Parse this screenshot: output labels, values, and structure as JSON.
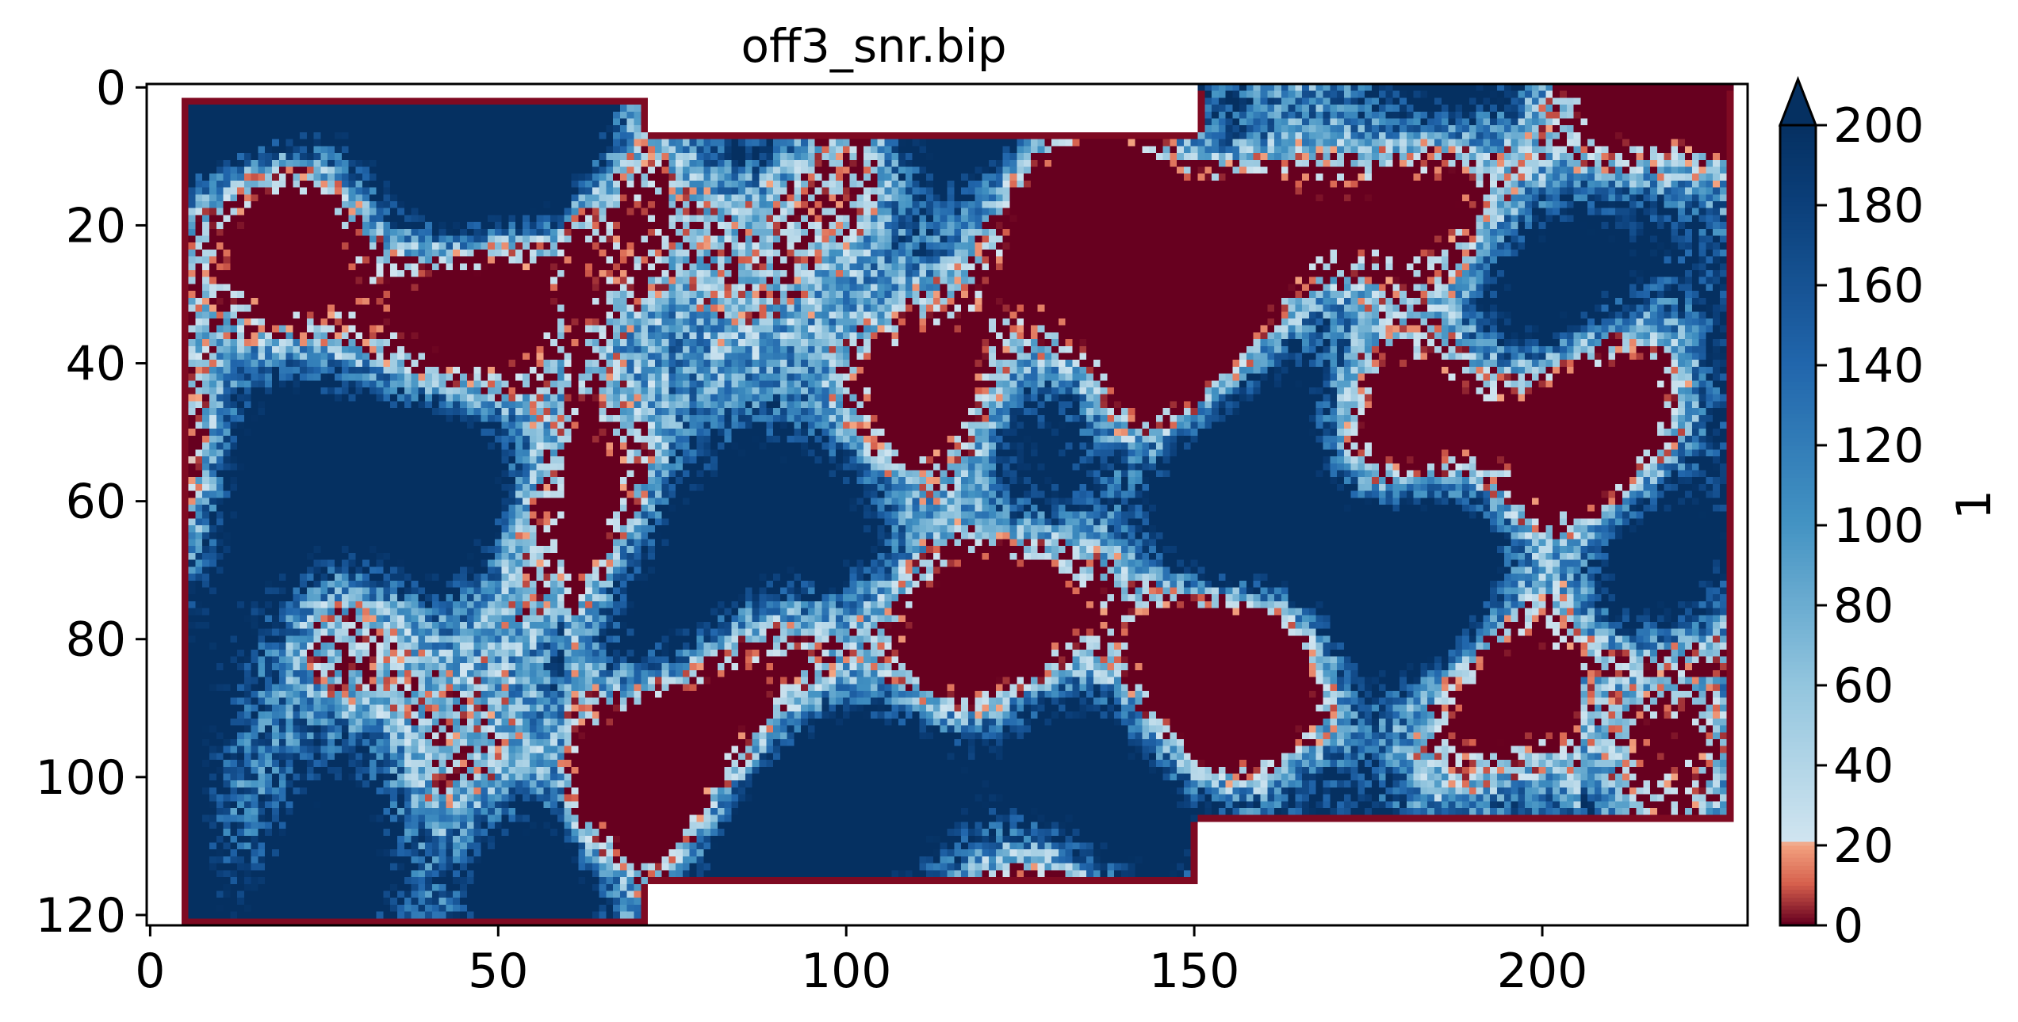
{
  "chart_data": {
    "type": "heatmap",
    "title": "off3_snr.bip",
    "x_ticks": [
      0,
      50,
      100,
      150,
      200
    ],
    "y_ticks": [
      0,
      20,
      40,
      60,
      80,
      100,
      120
    ],
    "xlim": [
      -0.5,
      229.5
    ],
    "ylim": [
      121.5,
      -0.5
    ],
    "grid_shape": {
      "rows": 122,
      "cols": 230
    },
    "valid_region": [
      {
        "x_from": 5,
        "x_to": 72,
        "y_from": 2,
        "y_to": 122
      },
      {
        "x_from": 72,
        "x_to": 151,
        "y_from": 7,
        "y_to": 116
      },
      {
        "x_from": 151,
        "x_to": 228,
        "y_from": 0,
        "y_to": 107
      }
    ],
    "colorbar": {
      "label": "1",
      "range": [
        0,
        200
      ],
      "ticks": [
        0,
        20,
        40,
        60,
        80,
        100,
        120,
        140,
        160,
        180,
        200
      ],
      "extend": "max",
      "stops": [
        {
          "value": 0,
          "color": "#67001f"
        },
        {
          "value": 10,
          "color": "#d6604d"
        },
        {
          "value": 20,
          "color": "#f4a582"
        },
        {
          "value": 20.01,
          "color": "#d1e5f0"
        },
        {
          "value": 60,
          "color": "#92c5de"
        },
        {
          "value": 100,
          "color": "#4393c3"
        },
        {
          "value": 140,
          "color": "#2166ac"
        },
        {
          "value": 180,
          "color": "#0b3f7a"
        },
        {
          "value": 200,
          "color": "#053061"
        }
      ],
      "over_color": "#053061"
    },
    "colors": {
      "border": "#7f0a22",
      "low": "#b2182b",
      "mid_low": "#ef8a62",
      "light": "#d1e5f0",
      "mid": "#6baed6",
      "high": "#053061"
    }
  }
}
